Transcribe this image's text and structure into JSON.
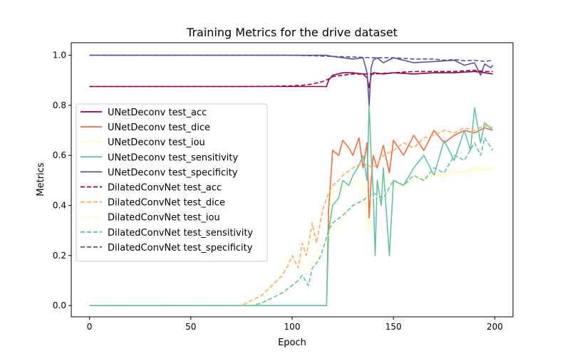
{
  "chart_data": {
    "type": "line",
    "title": "Training Metrics for the drive dataset",
    "xlabel": "Epoch",
    "ylabel": "Metrics",
    "xlim": [
      -9,
      209
    ],
    "ylim": [
      -0.045,
      1.05
    ],
    "xticks": [
      0,
      50,
      100,
      150,
      200
    ],
    "yticks": [
      0.0,
      0.2,
      0.4,
      0.6,
      0.8,
      1.0
    ],
    "xtick_labels": [
      "0",
      "50",
      "100",
      "150",
      "200"
    ],
    "ytick_labels": [
      "0.0",
      "0.2",
      "0.4",
      "0.6",
      "0.8",
      "1.0"
    ],
    "grid": false,
    "legend_position": "center-left",
    "series": [
      {
        "name": "UNetDeconv test_acc",
        "color": "#9e0142",
        "dash": "solid",
        "x": [
          0,
          60,
          117,
          118,
          120,
          125,
          130,
          135,
          137,
          138,
          139,
          140,
          145,
          150,
          160,
          170,
          180,
          190,
          195,
          199
        ],
        "y": [
          0.875,
          0.875,
          0.875,
          0.9,
          0.92,
          0.93,
          0.93,
          0.925,
          0.91,
          0.87,
          0.92,
          0.93,
          0.925,
          0.93,
          0.925,
          0.93,
          0.93,
          0.935,
          0.93,
          0.925
        ]
      },
      {
        "name": "UNetDeconv test_dice",
        "color": "#f46d43",
        "dash": "solid",
        "x": [
          0,
          117,
          118,
          120,
          123,
          125,
          128,
          130,
          133,
          135,
          137,
          138,
          139,
          140,
          142,
          145,
          148,
          150,
          155,
          160,
          165,
          170,
          175,
          180,
          185,
          190,
          195,
          199
        ],
        "y": [
          0.0,
          0.0,
          0.38,
          0.62,
          0.6,
          0.66,
          0.63,
          0.6,
          0.67,
          0.55,
          0.65,
          0.35,
          0.5,
          0.6,
          0.55,
          0.64,
          0.53,
          0.66,
          0.6,
          0.68,
          0.62,
          0.7,
          0.65,
          0.68,
          0.7,
          0.69,
          0.71,
          0.7
        ]
      },
      {
        "name": "UNetDeconv test_iou",
        "color": "#ffffbf",
        "dash": "solid",
        "x": [
          0,
          117,
          118,
          120,
          125,
          130,
          135,
          138,
          140,
          145,
          150,
          155,
          160,
          165,
          170,
          175,
          180,
          185,
          190,
          195,
          199
        ],
        "y": [
          0.0,
          0.0,
          0.25,
          0.45,
          0.47,
          0.5,
          0.48,
          0.3,
          0.46,
          0.5,
          0.5,
          0.48,
          0.52,
          0.5,
          0.53,
          0.51,
          0.54,
          0.53,
          0.55,
          0.54,
          0.55
        ]
      },
      {
        "name": "UNetDeconv test_sensitivity",
        "color": "#66c2a5",
        "dash": "solid",
        "x": [
          0,
          117,
          118,
          120,
          123,
          125,
          128,
          130,
          133,
          135,
          137,
          138,
          139,
          140,
          141,
          142,
          144,
          145,
          148,
          150,
          155,
          160,
          165,
          170,
          175,
          180,
          185,
          188,
          190,
          193,
          195,
          199
        ],
        "y": [
          0.0,
          0.0,
          0.3,
          0.4,
          0.43,
          0.5,
          0.48,
          0.52,
          0.56,
          0.6,
          0.5,
          0.8,
          0.6,
          0.45,
          0.2,
          0.5,
          0.4,
          0.55,
          0.2,
          0.5,
          0.48,
          0.55,
          0.6,
          0.52,
          0.66,
          0.58,
          0.7,
          0.62,
          0.79,
          0.65,
          0.73,
          0.7
        ]
      },
      {
        "name": "UNetDeconv test_specificity",
        "color": "#5e4fa2",
        "dash": "solid",
        "x": [
          0,
          60,
          117,
          120,
          125,
          130,
          135,
          137,
          138,
          139,
          140,
          142,
          145,
          150,
          160,
          170,
          180,
          185,
          190,
          193,
          195,
          198,
          199
        ],
        "y": [
          1.0,
          1.0,
          1.0,
          0.995,
          0.99,
          0.985,
          0.99,
          0.93,
          0.8,
          0.95,
          0.98,
          0.99,
          0.97,
          0.99,
          0.97,
          0.975,
          0.98,
          0.96,
          0.97,
          0.92,
          0.965,
          0.95,
          0.96
        ]
      },
      {
        "name": "DilatedConvNet test_acc",
        "color": "#9e0142",
        "dash": "dashed",
        "x": [
          0,
          75,
          90,
          100,
          105,
          110,
          115,
          118,
          120,
          125,
          130,
          140,
          150,
          160,
          170,
          180,
          190,
          195,
          199
        ],
        "y": [
          0.875,
          0.875,
          0.876,
          0.878,
          0.88,
          0.885,
          0.895,
          0.905,
          0.915,
          0.92,
          0.925,
          0.925,
          0.93,
          0.935,
          0.935,
          0.935,
          0.94,
          0.935,
          0.935
        ]
      },
      {
        "name": "DilatedConvNet test_dice",
        "color": "#fdae61",
        "dash": "dashed",
        "x": [
          0,
          75,
          80,
          85,
          90,
          95,
          98,
          100,
          103,
          105,
          107,
          110,
          112,
          115,
          118,
          120,
          123,
          125,
          130,
          135,
          140,
          145,
          150,
          155,
          160,
          165,
          170,
          175,
          180,
          185,
          190,
          195,
          199
        ],
        "y": [
          0.0,
          0.0,
          0.02,
          0.04,
          0.08,
          0.12,
          0.16,
          0.2,
          0.15,
          0.25,
          0.2,
          0.33,
          0.25,
          0.38,
          0.45,
          0.48,
          0.5,
          0.52,
          0.55,
          0.57,
          0.55,
          0.6,
          0.62,
          0.65,
          0.63,
          0.67,
          0.68,
          0.7,
          0.69,
          0.71,
          0.7,
          0.72,
          0.71
        ]
      },
      {
        "name": "DilatedConvNet test_iou",
        "color": "#ffffbf",
        "dash": "dashed",
        "x": [
          0,
          80,
          90,
          100,
          105,
          110,
          115,
          120,
          125,
          130,
          140,
          150,
          160,
          170,
          180,
          190,
          195,
          199
        ],
        "y": [
          0.0,
          0.0,
          0.03,
          0.08,
          0.12,
          0.18,
          0.25,
          0.3,
          0.35,
          0.4,
          0.43,
          0.46,
          0.5,
          0.52,
          0.53,
          0.54,
          0.55,
          0.545
        ]
      },
      {
        "name": "DilatedConvNet test_sensitivity",
        "color": "#66c2a5",
        "dash": "dashed",
        "x": [
          0,
          80,
          85,
          90,
          95,
          100,
          103,
          105,
          108,
          110,
          113,
          115,
          118,
          120,
          125,
          130,
          135,
          140,
          145,
          150,
          155,
          160,
          165,
          170,
          175,
          180,
          185,
          190,
          193,
          195,
          199
        ],
        "y": [
          0.0,
          0.0,
          0.01,
          0.03,
          0.05,
          0.08,
          0.1,
          0.12,
          0.08,
          0.15,
          0.18,
          0.22,
          0.3,
          0.33,
          0.36,
          0.4,
          0.42,
          0.45,
          0.43,
          0.5,
          0.48,
          0.52,
          0.5,
          0.55,
          0.53,
          0.6,
          0.58,
          0.65,
          0.6,
          0.67,
          0.62
        ]
      },
      {
        "name": "DilatedConvNet test_specificity",
        "color": "#5e4fa2",
        "dash": "dashed",
        "x": [
          0,
          80,
          100,
          110,
          120,
          130,
          140,
          150,
          160,
          170,
          175,
          180,
          185,
          190,
          195,
          199
        ],
        "y": [
          1.0,
          1.0,
          1.0,
          0.998,
          0.995,
          0.993,
          0.99,
          0.99,
          0.985,
          0.985,
          0.98,
          0.983,
          0.978,
          0.98,
          0.975,
          0.98
        ]
      }
    ]
  }
}
